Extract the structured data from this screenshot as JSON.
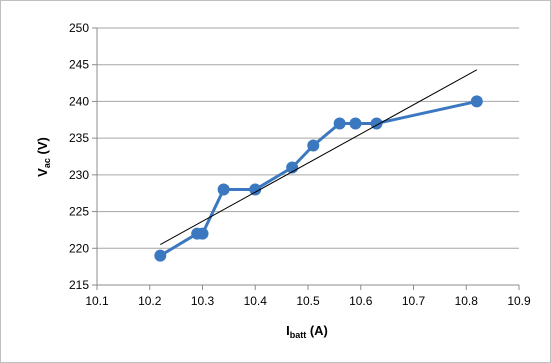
{
  "chart_data": {
    "type": "scatter",
    "x_label": {
      "main": "I",
      "sub": "batt",
      "unit": " (A)"
    },
    "y_label": {
      "main": "V",
      "sub": "ac",
      "unit": " (V)"
    },
    "xlim": [
      10.1,
      10.9
    ],
    "ylim": [
      215,
      250
    ],
    "x_ticks": [
      "10.1",
      "10.2",
      "10.3",
      "10.4",
      "10.5",
      "10.6",
      "10.7",
      "10.8",
      "10.9"
    ],
    "y_ticks": [
      "215",
      "220",
      "225",
      "230",
      "235",
      "240",
      "245",
      "250"
    ],
    "grid": "horizontal",
    "series": [
      {
        "x": [
          10.22,
          10.29,
          10.3,
          10.34,
          10.4,
          10.47,
          10.51,
          10.56,
          10.59,
          10.63,
          10.82
        ],
        "y": [
          219,
          222,
          222,
          228,
          228,
          231,
          234,
          237,
          237,
          237,
          240
        ],
        "color": "#3b78c0",
        "style": "line-with-markers"
      }
    ],
    "trendline": {
      "type": "linear",
      "x": [
        10.22,
        10.82
      ],
      "y": [
        220.5,
        244.3
      ],
      "color": "#000000"
    }
  }
}
